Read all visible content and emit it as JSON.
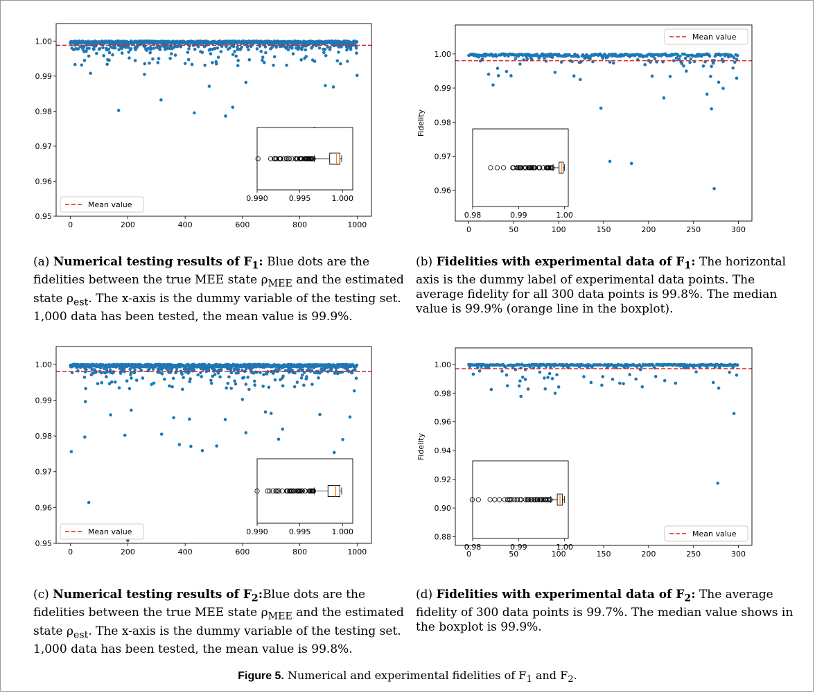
{
  "chart_data": [
    {
      "id": "a",
      "type": "scatter",
      "ylabel": "Fidelity",
      "xlim": [
        -50,
        1050
      ],
      "ylim": [
        0.95,
        1.005
      ],
      "xticks": [
        "0",
        "200",
        "400",
        "600",
        "800",
        "1000"
      ],
      "yticks": [
        "0.95",
        "0.96",
        "0.97",
        "0.98",
        "0.99",
        "1.00"
      ],
      "n_points": 1000,
      "mean": 0.9988,
      "legend_position": "lower-left",
      "outliers": [
        [
          168,
          0.9802
        ],
        [
          316,
          0.9832
        ],
        [
          432,
          0.9795
        ],
        [
          541,
          0.9786
        ],
        [
          566,
          0.9811
        ],
        [
          851,
          0.9751
        ],
        [
          70,
          0.9908
        ],
        [
          258,
          0.9905
        ],
        [
          484,
          0.9871
        ],
        [
          612,
          0.9882
        ],
        [
          889,
          0.9873
        ],
        [
          917,
          0.9869
        ],
        [
          1000,
          0.9902
        ]
      ],
      "inset": {
        "type": "boxplot",
        "xlim": [
          0.99,
          1.0012
        ],
        "xticks": [
          "0.990",
          "0.995",
          "1.000"
        ],
        "q1": 0.9985,
        "median": 0.9993,
        "q3": 0.9997,
        "whisker_low": 0.9967,
        "whisker_high": 0.9999,
        "flier_min": 0.9901,
        "flier_max": 0.9966
      }
    },
    {
      "id": "b",
      "type": "scatter",
      "ylabel": "Fidelity",
      "xlim": [
        -15,
        315
      ],
      "ylim": [
        0.951,
        1.0085
      ],
      "xticks": [
        "0",
        "50",
        "100",
        "150",
        "200",
        "250",
        "300"
      ],
      "yticks": [
        "0.96",
        "0.97",
        "0.98",
        "0.99",
        "1.00"
      ],
      "n_points": 300,
      "mean": 0.998,
      "legend_position": "upper-right",
      "outliers": [
        [
          147,
          0.9841
        ],
        [
          157,
          0.9685
        ],
        [
          181,
          0.9679
        ],
        [
          217,
          0.9871
        ],
        [
          273,
          0.9605
        ],
        [
          265,
          0.9882
        ],
        [
          270,
          0.9839
        ],
        [
          27,
          0.9909
        ],
        [
          47,
          0.9936
        ],
        [
          204,
          0.9935
        ],
        [
          278,
          0.9917
        ],
        [
          298,
          0.9929
        ],
        [
          283,
          0.9899
        ],
        [
          224,
          0.9934
        ],
        [
          96,
          0.9946
        ],
        [
          124,
          0.9925
        ]
      ],
      "inset": {
        "type": "boxplot",
        "xlim": [
          0.98,
          1.0008
        ],
        "xticks": [
          "0.98",
          "0.99",
          "1.00"
        ],
        "q1": 0.9988,
        "median": 0.9993,
        "q3": 0.9997,
        "whisker_low": 0.9975,
        "whisker_high": 1.0,
        "flier_min": 0.9839,
        "flier_max": 0.9974
      }
    },
    {
      "id": "c",
      "type": "scatter",
      "ylabel": "Fidelity",
      "xlim": [
        -50,
        1050
      ],
      "ylim": [
        0.95,
        1.005
      ],
      "xticks": [
        "0",
        "200",
        "400",
        "600",
        "800",
        "1000"
      ],
      "yticks": [
        "0.95",
        "0.96",
        "0.97",
        "0.98",
        "0.99",
        "1.00"
      ],
      "n_points": 1000,
      "mean": 0.998,
      "legend_position": "lower-left",
      "outliers": [
        [
          3,
          0.9756
        ],
        [
          50,
          0.9797
        ],
        [
          64,
          0.9614
        ],
        [
          200,
          0.9508
        ],
        [
          140,
          0.9859
        ],
        [
          190,
          0.9802
        ],
        [
          212,
          0.9872
        ],
        [
          318,
          0.9805
        ],
        [
          380,
          0.9776
        ],
        [
          420,
          0.9771
        ],
        [
          460,
          0.9759
        ],
        [
          510,
          0.9772
        ],
        [
          540,
          0.9846
        ],
        [
          612,
          0.9809
        ],
        [
          680,
          0.9867
        ],
        [
          700,
          0.9863
        ],
        [
          726,
          0.9791
        ],
        [
          740,
          0.9819
        ],
        [
          870,
          0.986
        ],
        [
          920,
          0.9754
        ],
        [
          950,
          0.979
        ],
        [
          975,
          0.9853
        ],
        [
          990,
          0.9926
        ],
        [
          52,
          0.9896
        ],
        [
          600,
          0.9902
        ],
        [
          360,
          0.9851
        ],
        [
          415,
          0.9847
        ]
      ],
      "inset": {
        "type": "boxplot",
        "xlim": [
          0.99,
          1.0012
        ],
        "xticks": [
          "0.990",
          "0.995",
          "1.000"
        ],
        "q1": 0.9983,
        "median": 0.9992,
        "q3": 0.9997,
        "whisker_low": 0.9967,
        "whisker_high": 0.9999,
        "flier_min": 0.99,
        "flier_max": 0.9966
      }
    },
    {
      "id": "d",
      "type": "scatter",
      "ylabel": "Fidelity",
      "xlim": [
        -15,
        315
      ],
      "ylim": [
        0.874,
        1.0115
      ],
      "xticks": [
        "0",
        "50",
        "100",
        "150",
        "200",
        "250",
        "300"
      ],
      "yticks": [
        "0.88",
        "0.90",
        "0.92",
        "0.94",
        "0.96",
        "0.98",
        "1.00"
      ],
      "n_points": 300,
      "mean": 0.997,
      "legend_position": "lower-right",
      "outliers": [
        [
          67,
          0.8829
        ],
        [
          277,
          0.9173
        ],
        [
          295,
          0.9658
        ],
        [
          278,
          0.9835
        ],
        [
          96,
          0.9799
        ],
        [
          58,
          0.9777
        ],
        [
          56,
          0.985
        ],
        [
          63,
          0.9895
        ],
        [
          84,
          0.9905
        ],
        [
          298,
          0.9925
        ],
        [
          290,
          0.9945
        ],
        [
          90,
          0.9936
        ],
        [
          79,
          0.9946
        ]
      ],
      "inset": {
        "type": "boxplot",
        "xlim": [
          0.98,
          1.0008
        ],
        "xticks": [
          "0.98",
          "0.99",
          "1.00"
        ],
        "q1": 0.9984,
        "median": 0.999,
        "q3": 0.9995,
        "whisker_low": 0.997,
        "whisker_high": 1.0,
        "flier_min": 0.9799,
        "flier_max": 0.9969
      }
    }
  ],
  "legend": {
    "label": "Mean value"
  },
  "colors": {
    "points": "#1f77b4",
    "mean_line": "#d62728",
    "median": "#ff7f0e"
  },
  "captions": {
    "a": {
      "tag": "(a)",
      "bold": "Numerical testing results of F",
      "sub": "1",
      "colon": ":",
      "text": " Blue dots are the fidelities between the true MEE state ρ",
      "sub2": "MEE",
      "text2": " and the estimated state ρ",
      "sub3": "est",
      "text3": ". The x-axis is the dummy variable of the testing set. 1,000 data has been tested, the mean value is 99.9%."
    },
    "b": {
      "tag": "(b)",
      "bold": "Fidelities with experimental data of F",
      "sub": "1",
      "colon": ":",
      "text": " The horizontal axis is the dummy label of experimental data points. The average fidelity for all 300 data points is 99.8%. The median value is 99.9% (orange line in the boxplot)."
    },
    "c": {
      "tag": "(c)",
      "bold": "Numerical testing results of F",
      "sub": "2",
      "colon": ":",
      "text": "Blue dots are the fidelities between the true MEE state ρ",
      "sub2": "MEE",
      "text2": " and the estimated state ρ",
      "sub3": "est",
      "text3": ". The x-axis is the dummy variable of the testing set. 1,000 data has been tested, the mean value is 99.8%."
    },
    "d": {
      "tag": "(d)",
      "bold": "Fidelities with experimental data of F",
      "sub": "2",
      "colon": ":",
      "text": " The average fidelity of 300 data points is 99.7%. The median value shows in the boxplot is 99.9%."
    }
  },
  "figure_caption": {
    "label": "Figure 5.",
    "text": "  Numerical and experimental fidelities of F",
    "sub1": "1",
    "and": " and F",
    "sub2": "2",
    "end": "."
  }
}
